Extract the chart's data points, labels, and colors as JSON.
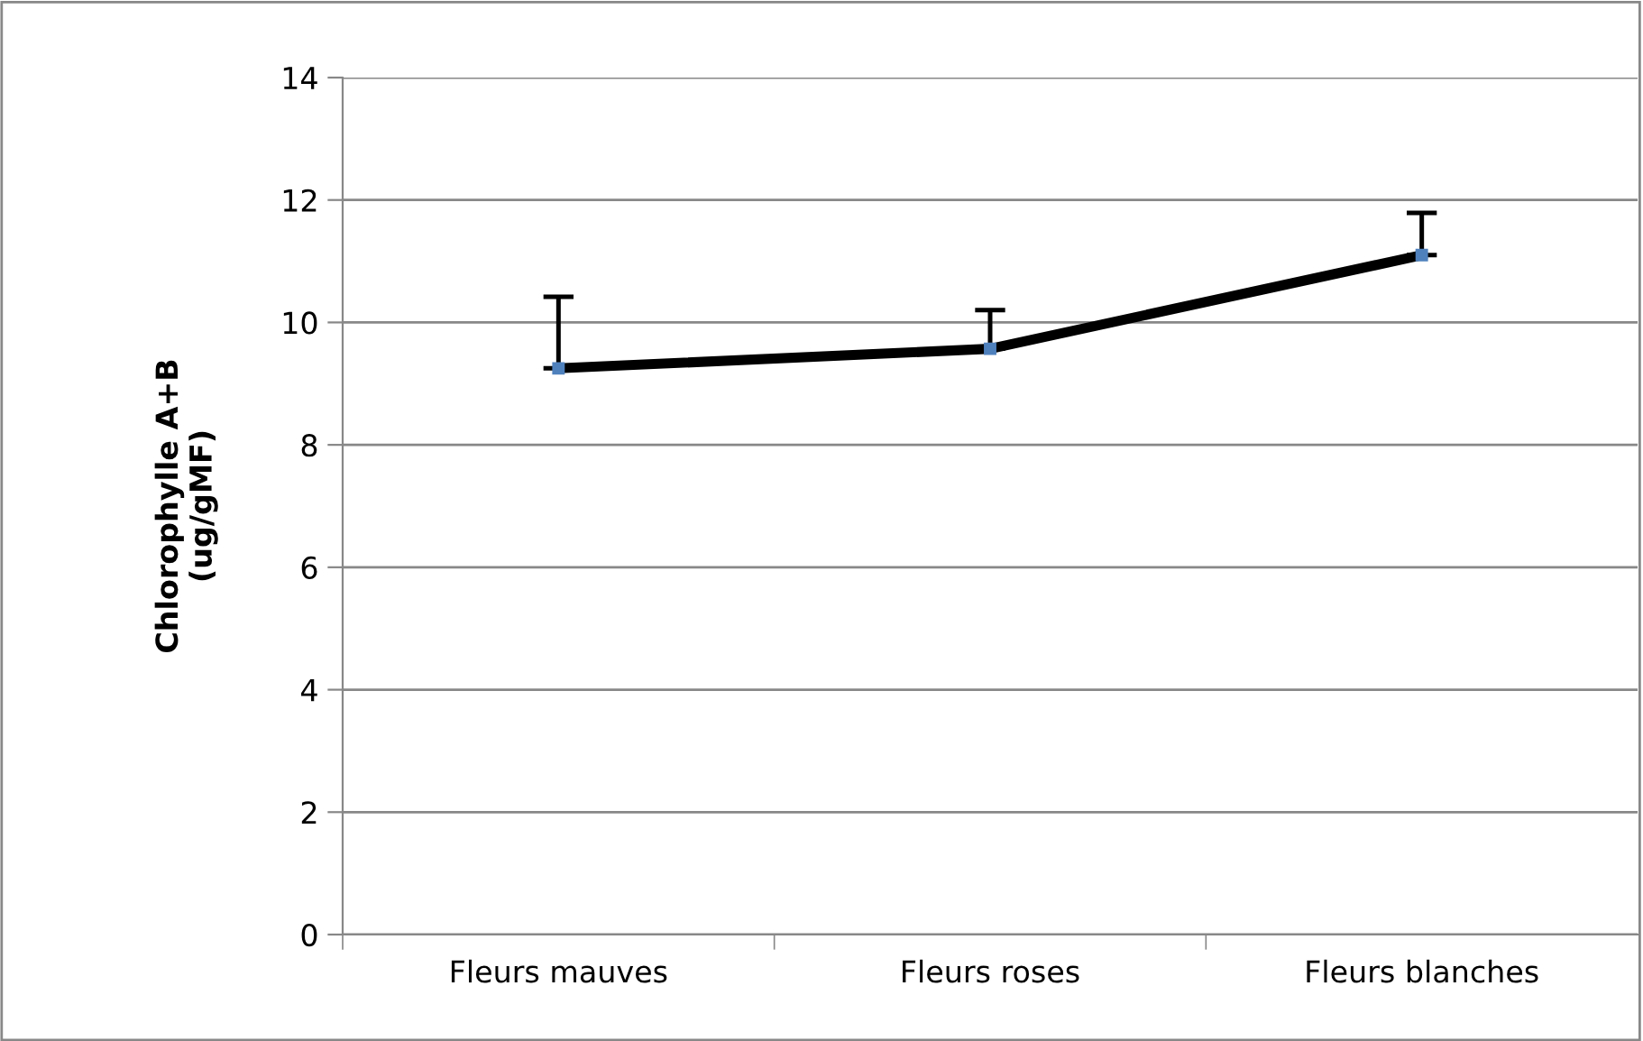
{
  "chart_data": {
    "type": "line",
    "ylabel": "Chlorophylle A+B\n(ug/gMF)",
    "categories": [
      "Fleurs mauves",
      "Fleurs roses",
      "Fleurs blanches"
    ],
    "series": [
      {
        "color": "#000000",
        "values": [
          9.25,
          9.57,
          11.1
        ],
        "errors": [
          [
            9.25,
            10.42
          ],
          [
            9.57,
            10.2
          ],
          [
            11.1,
            11.79
          ]
        ]
      }
    ],
    "ylim": [
      0,
      14
    ],
    "yticks": [
      0,
      2,
      4,
      6,
      8,
      10,
      12,
      14
    ],
    "grid": "y",
    "marker": "square",
    "line_style": "solid",
    "legend": false
  }
}
